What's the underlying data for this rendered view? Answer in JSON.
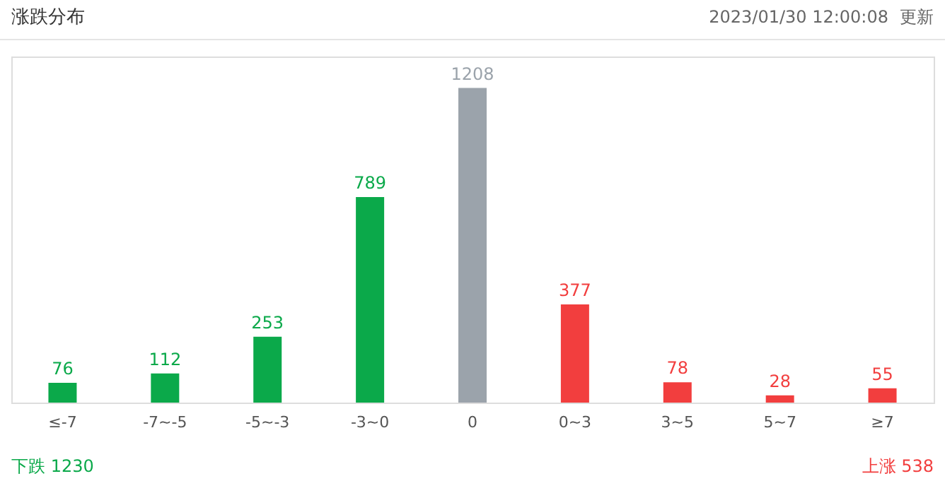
{
  "chart_data": {
    "type": "bar",
    "title": "涨跌分布",
    "categories": [
      "≤-7",
      "-7~-5",
      "-5~-3",
      "-3~0",
      "0",
      "0~3",
      "3~5",
      "5~7",
      "≥7"
    ],
    "values": [
      76,
      112,
      253,
      789,
      1208,
      377,
      78,
      28,
      55
    ],
    "colors": [
      "#0ba94a",
      "#0ba94a",
      "#0ba94a",
      "#0ba94a",
      "#9ba3ab",
      "#f23e3e",
      "#f23e3e",
      "#f23e3e",
      "#f23e3e"
    ],
    "data_labels": true,
    "grid": false,
    "annotations": [
      "2023/01/30 12:00:08",
      "更新",
      "下跌 1230",
      "上涨 538"
    ]
  }
}
